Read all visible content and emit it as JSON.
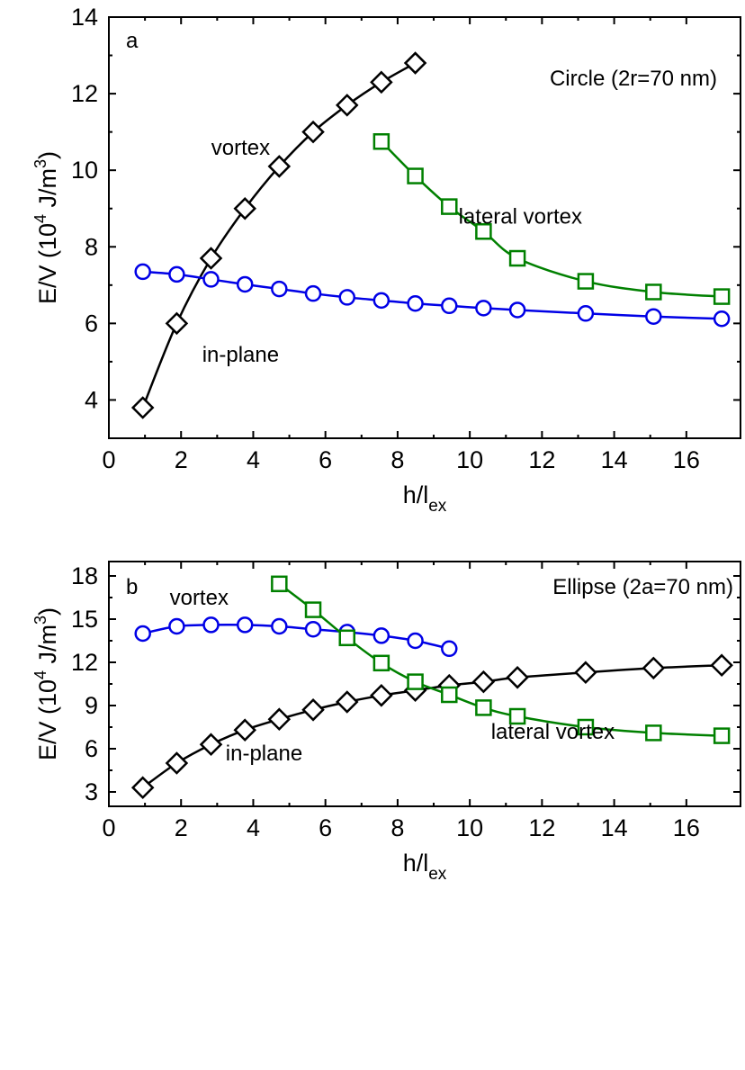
{
  "chart_data": [
    {
      "type": "line",
      "panel_label": "a",
      "title": "Circle (2r=70 nm)",
      "xlabel": {
        "base": "h/l",
        "sub": "ex"
      },
      "ylabel": {
        "prefix": "E/V (10",
        "sup1": "4",
        "mid": " J/m",
        "sup2": "3",
        "suffix": ")"
      },
      "xlim": [
        0,
        17.5
      ],
      "ylim": [
        3,
        14
      ],
      "xticks": [
        0,
        2,
        4,
        6,
        8,
        10,
        12,
        14,
        16
      ],
      "yticks": [
        4,
        6,
        8,
        10,
        12,
        14
      ],
      "xtick_labels": [
        "0",
        "2",
        "4",
        "6",
        "8",
        "10",
        "12",
        "14",
        "16"
      ],
      "ytick_labels": [
        "4",
        "6",
        "8",
        "10",
        "12",
        "14"
      ],
      "grid": false,
      "series": [
        {
          "name": "vortex",
          "marker": "diamond",
          "color": "#000000",
          "x": [
            0.94,
            1.88,
            2.83,
            3.77,
            4.72,
            5.66,
            6.6,
            7.55,
            8.49
          ],
          "y": [
            3.8,
            6.0,
            7.7,
            9.0,
            10.1,
            11.0,
            11.7,
            12.3,
            12.8
          ]
        },
        {
          "name": "in-plane",
          "marker": "circle",
          "color": "#0000e6",
          "x": [
            0.94,
            1.88,
            2.83,
            3.77,
            4.72,
            5.66,
            6.6,
            7.55,
            8.49,
            9.43,
            10.38,
            11.32,
            13.21,
            15.09,
            16.98
          ],
          "y": [
            7.35,
            7.28,
            7.15,
            7.02,
            6.9,
            6.78,
            6.68,
            6.6,
            6.52,
            6.46,
            6.4,
            6.35,
            6.26,
            6.18,
            6.12
          ]
        },
        {
          "name": "lateral vortex",
          "marker": "square",
          "color": "#008000",
          "x": [
            7.55,
            8.49,
            9.43,
            10.38,
            11.32,
            13.21,
            15.09,
            16.98
          ],
          "y": [
            10.75,
            9.85,
            9.05,
            8.4,
            7.7,
            7.1,
            6.82,
            6.7
          ]
        }
      ],
      "annotations": [
        {
          "text": "vortex",
          "x": 3.65,
          "y": 10.4
        },
        {
          "text": "in-plane",
          "x": 3.65,
          "y": 5.0
        },
        {
          "text": "lateral vortex",
          "x": 11.4,
          "y": 8.6
        }
      ]
    },
    {
      "type": "line",
      "panel_label": "b",
      "title": "Ellipse (2a=70 nm)",
      "xlabel": {
        "base": "h/l",
        "sub": "ex"
      },
      "ylabel": {
        "prefix": "E/V (10",
        "sup1": "4",
        "mid": " J/m",
        "sup2": "3",
        "suffix": ")"
      },
      "xlim": [
        0,
        17.5
      ],
      "ylim": [
        2,
        19
      ],
      "xticks": [
        0,
        2,
        4,
        6,
        8,
        10,
        12,
        14,
        16
      ],
      "yticks": [
        3,
        6,
        9,
        12,
        15,
        18
      ],
      "xtick_labels": [
        "0",
        "2",
        "4",
        "6",
        "8",
        "10",
        "12",
        "14",
        "16"
      ],
      "ytick_labels": [
        "3",
        "6",
        "9",
        "12",
        "15",
        "18"
      ],
      "grid": false,
      "series": [
        {
          "name": "in-plane",
          "marker": "diamond",
          "color": "#000000",
          "x": [
            0.94,
            1.88,
            2.83,
            3.77,
            4.72,
            5.66,
            6.6,
            7.55,
            8.49,
            9.43,
            10.38,
            11.32,
            13.21,
            15.09,
            16.98
          ],
          "y": [
            3.3,
            5.0,
            6.3,
            7.3,
            8.05,
            8.7,
            9.25,
            9.7,
            10.05,
            10.4,
            10.65,
            10.95,
            11.3,
            11.6,
            11.8
          ]
        },
        {
          "name": "vortex",
          "marker": "circle",
          "color": "#0000e6",
          "x": [
            0.94,
            1.88,
            2.83,
            3.77,
            4.72,
            5.66,
            6.6,
            7.55,
            8.49,
            9.43
          ],
          "y": [
            14.0,
            14.5,
            14.6,
            14.6,
            14.5,
            14.3,
            14.1,
            13.85,
            13.5,
            12.95
          ]
        },
        {
          "name": "lateral vortex",
          "marker": "square",
          "color": "#008000",
          "x": [
            4.72,
            5.66,
            6.6,
            7.55,
            8.49,
            9.43,
            10.38,
            11.32,
            13.21,
            15.09,
            16.98
          ],
          "y": [
            17.45,
            15.65,
            13.7,
            11.95,
            10.65,
            9.75,
            8.85,
            8.25,
            7.5,
            7.1,
            6.9
          ]
        }
      ],
      "annotations": [
        {
          "text": "vortex",
          "x": 2.5,
          "y": 16.0
        },
        {
          "text": "in-plane",
          "x": 4.3,
          "y": 5.2
        },
        {
          "text": "lateral vortex",
          "x": 12.3,
          "y": 6.7
        }
      ]
    }
  ]
}
